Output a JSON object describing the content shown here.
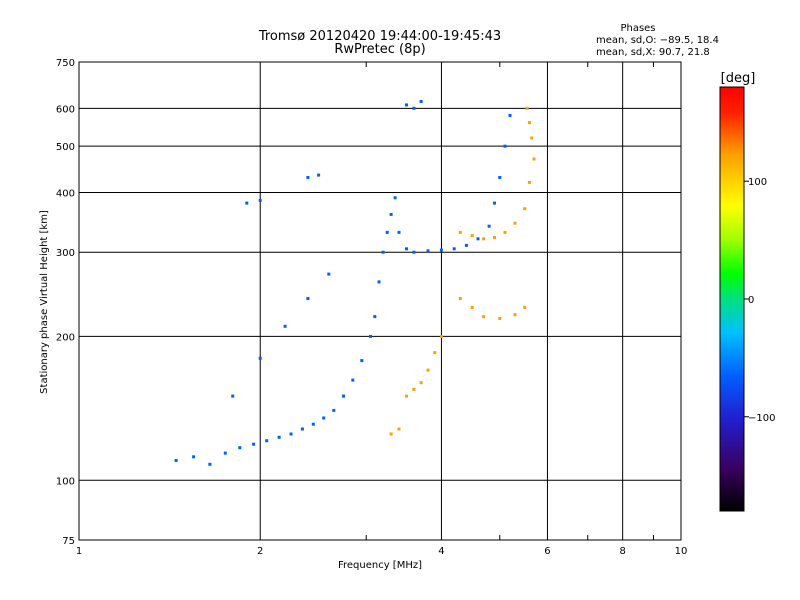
{
  "chart_data": {
    "type": "scatter",
    "title": "Tromsø 20120420 19:44:00-19:45:43",
    "subtitle": "RwPretec (8p)",
    "xlabel": "Frequency [MHz]",
    "ylabel": "Stationary phase Virtual Height [km]",
    "xscale": "log",
    "yscale": "log",
    "xlim": [
      1,
      10
    ],
    "ylim": [
      75,
      750
    ],
    "x_ticks": [
      "1",
      "2",
      "4",
      "6",
      "8",
      "10"
    ],
    "x_tick_values": [
      1,
      2,
      4,
      6,
      8,
      10
    ],
    "y_ticks": [
      "75",
      "100",
      "200",
      "300",
      "400",
      "500",
      "600",
      "750"
    ],
    "y_tick_values": [
      75,
      100,
      200,
      300,
      400,
      500,
      600,
      750
    ],
    "grid": true,
    "phase_stats": {
      "title": "Phases",
      "line1": "mean, sd,O: −89.5, 18.4",
      "line2": "mean, sd,X:  90.7, 21.8"
    },
    "colorbar": {
      "label": "[deg]",
      "range": [
        -180,
        180
      ],
      "ticks": [
        "100",
        "0",
        "−100"
      ],
      "tick_values": [
        100,
        0,
        -100
      ],
      "colors": [
        "#000000",
        "#3a0060",
        "#2020d0",
        "#0060ff",
        "#00c0ff",
        "#00e080",
        "#00ff00",
        "#a0ff00",
        "#ffff00",
        "#ffa000",
        "#ff2000",
        "#ff0000"
      ]
    },
    "series": [
      {
        "mode": "O",
        "approx_phase_deg": -90,
        "points": [
          [
            1.45,
            110
          ],
          [
            1.55,
            112
          ],
          [
            1.65,
            108
          ],
          [
            1.75,
            114
          ],
          [
            1.85,
            117
          ],
          [
            1.95,
            119
          ],
          [
            2.05,
            121
          ],
          [
            2.15,
            123
          ],
          [
            2.25,
            125
          ],
          [
            2.35,
            128
          ],
          [
            2.45,
            131
          ],
          [
            2.55,
            135
          ],
          [
            2.65,
            140
          ],
          [
            2.75,
            150
          ],
          [
            2.85,
            162
          ],
          [
            2.95,
            178
          ],
          [
            3.05,
            200
          ],
          [
            3.1,
            220
          ],
          [
            3.15,
            260
          ],
          [
            3.2,
            300
          ],
          [
            3.25,
            330
          ],
          [
            3.3,
            360
          ],
          [
            3.35,
            390
          ],
          [
            3.4,
            330
          ],
          [
            3.5,
            305
          ],
          [
            3.6,
            300
          ],
          [
            3.8,
            302
          ],
          [
            4.0,
            303
          ],
          [
            4.2,
            305
          ],
          [
            4.4,
            310
          ],
          [
            4.6,
            320
          ],
          [
            4.8,
            340
          ],
          [
            4.9,
            380
          ],
          [
            5.0,
            430
          ],
          [
            5.1,
            500
          ],
          [
            5.2,
            580
          ],
          [
            3.5,
            610
          ],
          [
            3.6,
            600
          ],
          [
            3.7,
            620
          ],
          [
            1.8,
            150
          ],
          [
            2.0,
            180
          ],
          [
            2.2,
            210
          ],
          [
            2.4,
            240
          ],
          [
            2.6,
            270
          ],
          [
            1.9,
            380
          ],
          [
            2.0,
            385
          ],
          [
            2.4,
            430
          ],
          [
            2.5,
            435
          ]
        ]
      },
      {
        "mode": "X",
        "approx_phase_deg": 100,
        "points": [
          [
            3.5,
            150
          ],
          [
            3.6,
            155
          ],
          [
            3.7,
            160
          ],
          [
            3.8,
            170
          ],
          [
            3.9,
            185
          ],
          [
            4.0,
            200
          ],
          [
            4.3,
            330
          ],
          [
            4.5,
            325
          ],
          [
            4.7,
            320
          ],
          [
            4.9,
            322
          ],
          [
            5.1,
            330
          ],
          [
            5.3,
            345
          ],
          [
            5.5,
            370
          ],
          [
            5.6,
            420
          ],
          [
            5.7,
            470
          ],
          [
            5.65,
            520
          ],
          [
            5.6,
            560
          ],
          [
            5.55,
            600
          ],
          [
            3.3,
            125
          ],
          [
            3.4,
            128
          ],
          [
            4.3,
            240
          ],
          [
            4.5,
            230
          ],
          [
            4.7,
            220
          ],
          [
            5.0,
            218
          ],
          [
            5.3,
            222
          ],
          [
            5.5,
            230
          ]
        ]
      }
    ]
  }
}
